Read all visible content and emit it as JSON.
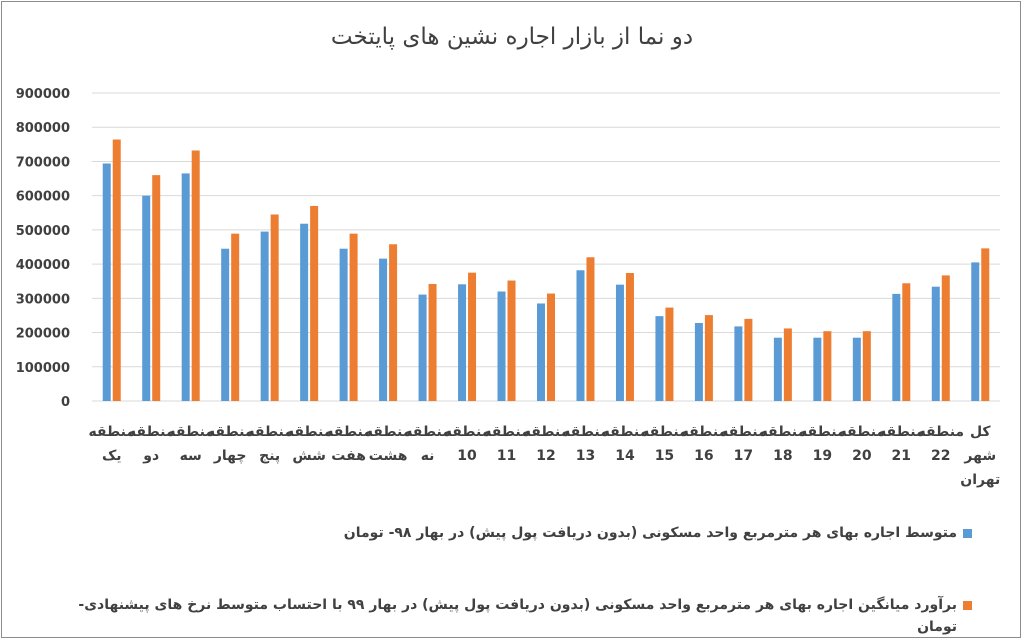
{
  "chart_data": {
    "type": "bar",
    "title": "دو نما از بازار اجاره نشین های پایتخت",
    "xlabel": "",
    "ylabel": "",
    "ylim": [
      0,
      900000
    ],
    "y_ticks": [
      "0",
      "100000",
      "200000",
      "300000",
      "400000",
      "500000",
      "600000",
      "700000",
      "800000",
      "900000"
    ],
    "y_tick_values": [
      0,
      100000,
      200000,
      300000,
      400000,
      500000,
      600000,
      700000,
      800000,
      900000
    ],
    "grid": true,
    "legend_position": "bottom",
    "categories": [
      [
        "منطقه",
        "یک"
      ],
      [
        "منطقه",
        "دو"
      ],
      [
        "منطقه",
        "سه"
      ],
      [
        "منطقه",
        "چهار"
      ],
      [
        "منطقه",
        "پنج"
      ],
      [
        "منطقه",
        "شش"
      ],
      [
        "منطقه",
        "هفت"
      ],
      [
        "منطقه",
        "هشت"
      ],
      [
        "منطقه",
        "نه"
      ],
      [
        "منطقه",
        "10"
      ],
      [
        "منطقه",
        "11"
      ],
      [
        "منطقه",
        "12"
      ],
      [
        "منطقه",
        "13"
      ],
      [
        "منطقه",
        "14"
      ],
      [
        "منطقه",
        "15"
      ],
      [
        "منطقه",
        "16"
      ],
      [
        "منطقه",
        "17"
      ],
      [
        "منطقه",
        "18"
      ],
      [
        "منطقه",
        "19"
      ],
      [
        "منطقه",
        "20"
      ],
      [
        "منطقه",
        "21"
      ],
      [
        "منطقه",
        "22"
      ],
      [
        "کل",
        "شهر",
        "تهران"
      ]
    ],
    "series": [
      {
        "name": "متوسط اجاره بهای هر مترمربع واحد مسکونی (بدون دریافت پول پیش) در بهار ۹۸- تومان",
        "color": "#5b9bd5",
        "values": [
          694000,
          600000,
          665000,
          445000,
          495000,
          518000,
          445000,
          416000,
          311000,
          341000,
          320000,
          285000,
          382000,
          340000,
          248000,
          228000,
          218000,
          185000,
          185000,
          185000,
          313000,
          334000,
          405000
        ]
      },
      {
        "name": "برآورد میانگین اجاره بهای هر مترمربع واحد مسکونی (بدون دریافت پول پیش) در بهار ۹۹ با احتساب متوسط نرخ های پیشنهادی- تومان",
        "color": "#ed7d31",
        "values": [
          764000,
          660000,
          732000,
          489000,
          545000,
          570000,
          489000,
          458000,
          342000,
          375000,
          352000,
          314000,
          420000,
          374000,
          273000,
          251000,
          240000,
          212000,
          204000,
          204000,
          344000,
          367000,
          446000
        ]
      }
    ]
  }
}
